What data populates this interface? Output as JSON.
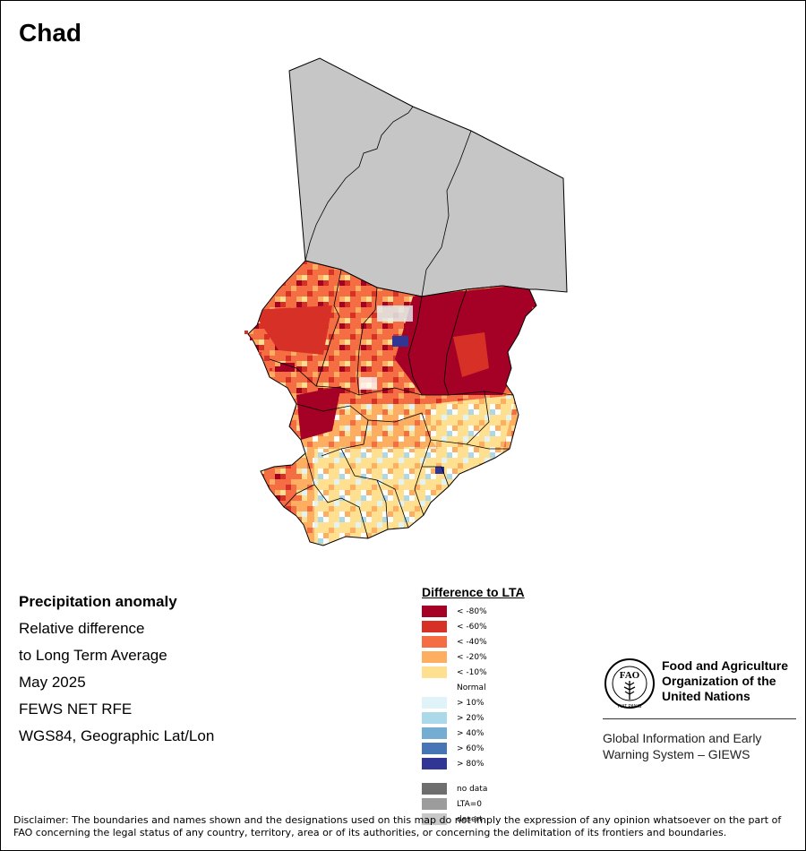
{
  "title": "Chad",
  "info": {
    "heading": "Precipitation anomaly",
    "lines": [
      "Relative difference",
      "to Long Term Average",
      "May 2025",
      "FEWS NET RFE",
      "WGS84, Geographic Lat/Lon"
    ]
  },
  "legend": {
    "title": "Difference to LTA",
    "classes": [
      {
        "label": "< -80%",
        "color": "#a50026"
      },
      {
        "label": "< -60%",
        "color": "#d73027"
      },
      {
        "label": "< -40%",
        "color": "#f46d43"
      },
      {
        "label": "< -20%",
        "color": "#fdae61"
      },
      {
        "label": "< -10%",
        "color": "#fee090"
      },
      {
        "label": "Normal",
        "color": "#ffffff"
      },
      {
        "label": "> 10%",
        "color": "#e0f3f8"
      },
      {
        "label": "> 20%",
        "color": "#abd9e9"
      },
      {
        "label": "> 40%",
        "color": "#74add1"
      },
      {
        "label": "> 60%",
        "color": "#4575b4"
      },
      {
        "label": "> 80%",
        "color": "#313695"
      }
    ],
    "extra": [
      {
        "label": "no data",
        "color": "#6e6e6e"
      },
      {
        "label": "LTA=0",
        "color": "#9c9c9c"
      },
      {
        "label": "desert",
        "color": "#c8c8c8"
      }
    ]
  },
  "organization": {
    "logo_text": "FAO",
    "logo_motto": "FIAT PANIS",
    "name_lines": [
      "Food and Agriculture",
      "Organization of the",
      "United Nations"
    ],
    "system_lines": [
      "Global Information and Early",
      "Warning System – GIEWS"
    ]
  },
  "disclaimer": "Disclaimer: The boundaries and names shown and the designations used on this map do not imply the expression of any opinion whatsoever on the part of FAO concerning the legal status of any country, territory, area or of its authorities, or concerning the delimitation of its frontiers and boundaries.",
  "map": {
    "desert_color": "#c6c6c6",
    "border_color": "#000000"
  }
}
